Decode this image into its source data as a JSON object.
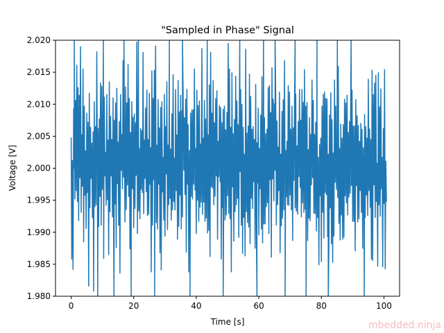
{
  "chart_data": {
    "type": "line",
    "title": "\"Sampled in Phase\" Signal",
    "xlabel": "Time [s]",
    "ylabel": "Voltage [V]",
    "xlim": [
      -5,
      105
    ],
    "ylim": [
      1.98,
      2.02
    ],
    "xticks": [
      0,
      20,
      40,
      60,
      80,
      100
    ],
    "xtick_labels": [
      "0",
      "20",
      "40",
      "60",
      "80",
      "100"
    ],
    "yticks": [
      1.98,
      1.985,
      1.99,
      1.995,
      2.0,
      2.005,
      2.01,
      2.015,
      2.02
    ],
    "ytick_labels": [
      "1.980",
      "1.985",
      "1.990",
      "1.995",
      "2.000",
      "2.005",
      "2.010",
      "2.015",
      "2.020"
    ],
    "grid": false,
    "series": [
      {
        "color": "#1f77b4",
        "x_start": 0,
        "x_step": 0.2,
        "values": [
          2.0048,
          1.9858,
          2.0012,
          1.9842,
          2.0093,
          2.0,
          1.9952,
          2.0106,
          1.9965,
          2.0161,
          1.9948,
          2.0126,
          1.9918,
          2.0114,
          1.9985,
          2.019,
          1.9931,
          2.0052,
          1.9972,
          2.0155,
          1.9885,
          2.0097,
          1.9958,
          2.0027,
          1.9906,
          2.0086,
          1.9962,
          2.0072,
          1.9816,
          2.0117,
          1.9938,
          2.0064,
          1.9984,
          2.0039,
          1.9923,
          2.0057,
          1.9808,
          2.0104,
          1.994,
          2.0065,
          1.9943,
          2.0182,
          1.9981,
          2.0062,
          1.9909,
          2.0077,
          1.9956,
          2.0133,
          1.9911,
          2.0128,
          1.9967,
          2.0087,
          1.9859,
          2.0111,
          1.9988,
          2.0025,
          1.9942,
          2.0115,
          1.9951,
          2.0044,
          1.9865,
          2.0135,
          1.9932,
          2.0081,
          1.9988,
          2.0045,
          1.9924,
          2.011,
          1.9878,
          2.0075,
          1.9944,
          2.0102,
          1.9876,
          2.0125,
          1.9976,
          2.0041,
          1.9911,
          2.0073,
          1.9836,
          2.0115,
          1.9997,
          2.0053,
          1.9968,
          2.0168,
          1.9986,
          2.0083,
          1.9916,
          2.0127,
          1.9935,
          2.0102,
          1.9974,
          2.0162,
          1.9956,
          2.0109,
          1.9874,
          2.0056,
          1.9921,
          2.0104,
          1.9968,
          2.008,
          1.9907,
          2.0085,
          1.9937,
          2.0071,
          1.9989,
          2.0197,
          1.9898,
          2.0101,
          1.9933,
          2.0031,
          1.9921,
          2.0062,
          1.9967,
          2.0059,
          1.9962,
          2.0181,
          1.9929,
          2.0044,
          1.9984,
          2.0094,
          1.9963,
          2.0122,
          1.9926,
          2.0045,
          1.9928,
          2.0117,
          1.9975,
          2.0032,
          1.9838,
          2.0152,
          1.9911,
          2.0109,
          1.9982,
          2.0153,
          1.9986,
          2.0191,
          1.9915,
          2.0036,
          1.9905,
          2.0107,
          1.9975,
          2.0063,
          1.9868,
          2.0095,
          1.9841,
          2.0104,
          1.9963,
          2.0017,
          1.9919,
          2.0115,
          1.9894,
          2.0065,
          1.9991,
          2.0135,
          1.9904,
          2.0036,
          1.9943,
          2.0084,
          1.9953,
          2.003,
          1.9919,
          2.0085,
          1.9935,
          2.0146,
          1.9948,
          2.0016,
          1.9935,
          2.0123,
          1.9965,
          2.0052,
          1.9889,
          2.0137,
          1.9909,
          2.0088,
          1.9958,
          2.0114,
          1.9905,
          2.009,
          1.9924,
          2.0114,
          1.9997,
          2.0079,
          1.9959,
          2.0108,
          1.9869,
          2.0123,
          1.9975,
          2.0068,
          1.9838,
          2.0028,
          1.9948,
          2.0086,
          1.9956,
          2.0091,
          1.9952,
          2.0091,
          1.9975,
          2.0155,
          1.9966,
          2.0031,
          1.9898,
          2.0122,
          1.995,
          2.0098,
          1.9917,
          2.0105,
          1.9939,
          2.0038,
          1.9947,
          2.0187,
          1.9928,
          2.0047,
          1.9947,
          2.0106,
          1.9917,
          2.0077,
          1.9922,
          2.0076,
          1.9899,
          2.0052,
          1.9903,
          2.013,
          1.9862,
          2.0181,
          1.9971,
          2.0086,
          1.9969,
          2.0137,
          1.9943,
          2.0071,
          1.9956,
          2.0109,
          1.9988,
          2.0121,
          1.9889,
          2.0042,
          1.9987,
          2.0098,
          1.9979,
          2.0095,
          1.9858,
          2.0071,
          1.9938,
          2.0092,
          1.9961,
          2.0097,
          1.9919,
          2.006,
          1.9927,
          2.0087,
          1.9957,
          2.0195,
          1.9929,
          2.0155,
          1.9921,
          2.0064,
          1.9838,
          2.0149,
          1.9971,
          2.0054,
          1.9886,
          2.0076,
          1.9932,
          2.0144,
          1.9943,
          2.0105,
          1.9953,
          2.0068,
          1.9892,
          2.0113,
          1.9995,
          2.0123,
          1.9911,
          2.01,
          1.9867,
          2.0064,
          1.9923,
          2.0022,
          1.9863,
          2.0186,
          1.9932,
          2.0055,
          1.9915,
          2.0066,
          1.9908,
          2.0147,
          1.9882,
          2.0112,
          1.9953,
          2.0061,
          1.9937,
          2.0065,
          1.9979,
          2.0045,
          1.9875,
          2.0131,
          1.9908,
          2.004,
          1.9977,
          2.0094,
          1.9896,
          2.0031,
          1.9968,
          2.0083,
          1.9905,
          2.0143,
          1.9883,
          2.0076,
          1.9913,
          2.0079,
          1.9913,
          2.0054,
          1.994,
          2.0061,
          1.9946,
          2.0126,
          1.9898,
          2.0129,
          1.9982,
          2.0087,
          1.9861,
          2.0157,
          1.9983,
          2.0108,
          1.9949,
          2.0101,
          1.9997,
          2.0115,
          1.9911,
          2.0074,
          1.9943,
          2.0033,
          1.9965,
          2.0119,
          1.9868,
          2.0022,
          1.991,
          2.0089,
          1.9922,
          2.0107,
          1.9935,
          2.0168,
          1.9968,
          2.0028,
          1.9955,
          2.0042,
          1.9943,
          2.0129,
          1.9942,
          2.0119,
          1.9958,
          2.0061,
          1.9935,
          2.0097,
          1.9887,
          2.0063,
          1.9981,
          2.0094,
          1.9938,
          2.0116,
          1.9933,
          2.0035,
          1.9928,
          2.0073,
          1.9987,
          2.0123,
          1.997,
          2.0075,
          1.9924,
          2.0123,
          1.9946,
          2.0103,
          1.9931,
          2.0154,
          1.9936,
          2.0097,
          1.9982,
          2.0103,
          1.9887,
          2.0029,
          1.9922,
          2.0079,
          1.9918,
          2.0053,
          1.9974,
          2.0138,
          1.9985,
          2.0106,
          1.993,
          2.0053,
          1.9929,
          2.0072,
          1.9902,
          2.0082,
          1.9923,
          2.0017,
          1.9849,
          2.0037,
          1.9957,
          2.0047,
          1.9854,
          2.0097,
          1.9931,
          2.0115,
          1.9891,
          2.0119,
          1.9962,
          2.0109,
          1.9959,
          2.0108,
          1.9893,
          2.0022,
          1.9873,
          2.0083,
          1.9938,
          2.0118,
          1.9882,
          2.0076,
          1.9853,
          2.0024,
          1.9894,
          2.0138,
          1.9978,
          2.0097,
          1.9967,
          2.0019,
          1.9954,
          2.0159,
          1.9914,
          2.0031,
          1.9888,
          2.0069,
          1.9927,
          2.0047,
          1.9889,
          2.0068,
          1.9892,
          2.0108,
          1.9957,
          2.0102,
          1.9946,
          2.0114,
          1.9927,
          2.0056,
          1.9955,
          2.0073,
          1.9961,
          2.0133,
          1.9973,
          2.0122,
          1.9917,
          2.0066,
          1.9917,
          2.0066,
          1.9871,
          2.0107,
          1.9973,
          2.0082,
          1.9916,
          2.0067,
          1.9921,
          2.0042,
          1.9965,
          2.007,
          1.9931,
          2.0061,
          1.9875,
          2.0032,
          1.9946,
          2.0084,
          1.9923,
          2.0065,
          1.9958,
          2.0047,
          1.9926,
          2.0139,
          1.9965,
          2.0061,
          1.9939,
          2.0045,
          1.9858,
          2.0153,
          1.9856,
          2.0115,
          1.9974,
          2.0133,
          1.9923,
          2.0145,
          1.9948,
          2.0008,
          1.9847,
          2.0149,
          1.9943,
          2.0096,
          1.9925,
          2.0124,
          1.9968,
          2.0017,
          1.9846,
          2.0062,
          1.9945,
          2.0154,
          1.9843,
          2.0011,
          1.9948
        ]
      }
    ],
    "spikes": [
      {
        "x": 1.0,
        "y": 2.02
      },
      {
        "x": 8.5,
        "y": 1.98
      },
      {
        "x": 10.3,
        "y": 2.02
      },
      {
        "x": 13.7,
        "y": 1.98
      },
      {
        "x": 16.9,
        "y": 2.02
      },
      {
        "x": 19.2,
        "y": 1.98
      },
      {
        "x": 21.5,
        "y": 2.02
      },
      {
        "x": 26.7,
        "y": 1.98
      },
      {
        "x": 31.4,
        "y": 2.02
      },
      {
        "x": 35.6,
        "y": 2.02
      },
      {
        "x": 38.0,
        "y": 1.98
      },
      {
        "x": 43.5,
        "y": 2.02
      },
      {
        "x": 48.6,
        "y": 1.98
      },
      {
        "x": 53.9,
        "y": 2.02
      },
      {
        "x": 59.4,
        "y": 1.98
      },
      {
        "x": 61.5,
        "y": 2.02
      },
      {
        "x": 65.2,
        "y": 2.02
      },
      {
        "x": 68.4,
        "y": 1.98
      },
      {
        "x": 71.6,
        "y": 2.02
      },
      {
        "x": 75.1,
        "y": 1.98
      },
      {
        "x": 78.6,
        "y": 2.02
      },
      {
        "x": 82.2,
        "y": 1.98
      },
      {
        "x": 85.1,
        "y": 2.02
      },
      {
        "x": 89.5,
        "y": 2.02
      },
      {
        "x": 93.7,
        "y": 1.98
      }
    ]
  },
  "watermark": "mbedded.ninja"
}
